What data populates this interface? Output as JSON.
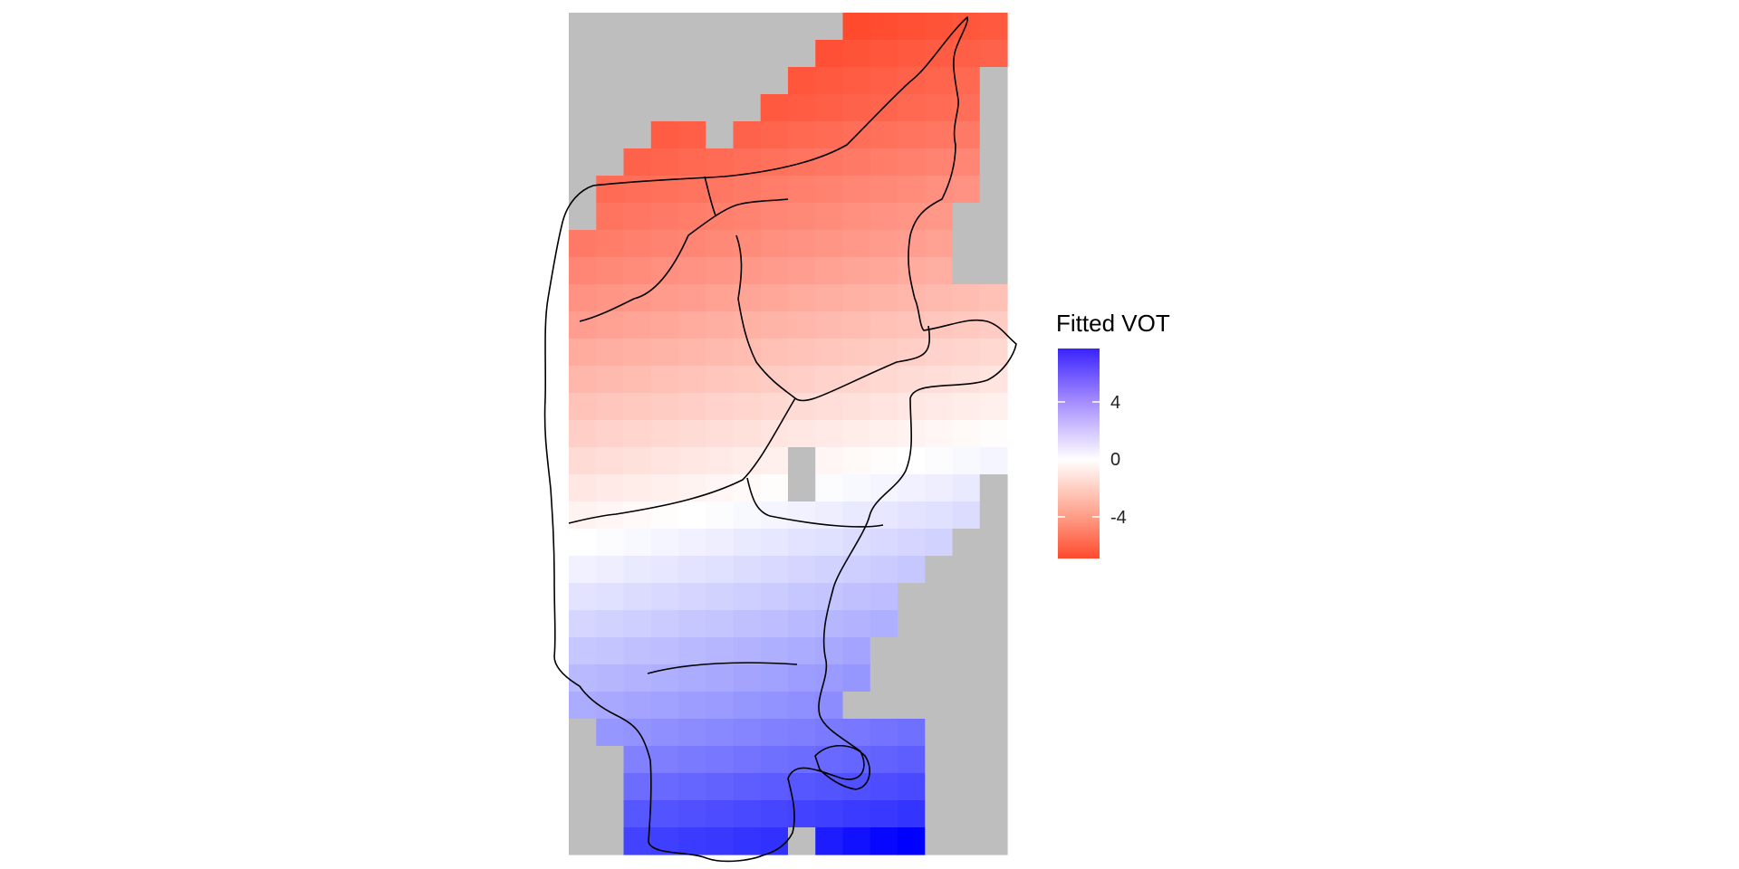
{
  "chart_data": {
    "type": "heatmap",
    "title": "",
    "xlabel": "",
    "ylabel": "",
    "axes_visible": false,
    "grid": false,
    "legend": {
      "title": "Fitted VOT",
      "position": "right",
      "ticks": [
        4,
        0,
        -4
      ],
      "tick_labels": [
        "4",
        "0",
        "-4"
      ],
      "range": [
        -6,
        7.3
      ]
    },
    "colors": {
      "low": "#ff4a2e",
      "mid": "#ffffff",
      "high": "#0000ff",
      "na": "#bebebe",
      "background": "#ffffff",
      "outline": "#000000"
    },
    "grid_size": {
      "cols": 16,
      "rows": 31
    },
    "values_by_row_top_to_bottom": [
      [
        null,
        null,
        null,
        null,
        null,
        null,
        null,
        null,
        null,
        null,
        -6.0,
        -5.9,
        -5.8,
        -5.7,
        -5.6,
        -5.5
      ],
      [
        null,
        null,
        null,
        null,
        null,
        null,
        null,
        null,
        null,
        -5.8,
        -5.7,
        -5.6,
        -5.5,
        -5.4,
        -5.3,
        -5.2
      ],
      [
        null,
        null,
        null,
        null,
        null,
        null,
        null,
        null,
        -5.6,
        -5.5,
        -5.4,
        -5.3,
        -5.2,
        -5.1,
        -5.0,
        null
      ],
      [
        null,
        null,
        null,
        null,
        null,
        null,
        null,
        -5.5,
        -5.4,
        -5.3,
        -5.2,
        -5.1,
        -5.0,
        -4.9,
        -4.8,
        null
      ],
      [
        null,
        null,
        null,
        -5.4,
        -5.3,
        null,
        -5.2,
        -5.1,
        -5.0,
        -4.9,
        -4.8,
        -4.7,
        -4.6,
        -4.5,
        -4.4,
        null
      ],
      [
        null,
        null,
        -5.2,
        -5.1,
        -5.0,
        -4.9,
        -4.8,
        -4.7,
        -4.6,
        -4.5,
        -4.4,
        -4.3,
        -4.2,
        -4.1,
        -4.0,
        null
      ],
      [
        null,
        -4.9,
        -4.8,
        -4.7,
        -4.6,
        -4.5,
        -4.4,
        -4.3,
        -4.2,
        -4.1,
        -4.0,
        -3.9,
        -3.8,
        -3.7,
        -3.6,
        null
      ],
      [
        null,
        -4.6,
        -4.5,
        -4.4,
        -4.3,
        -4.2,
        -4.1,
        -4.0,
        -3.9,
        -3.8,
        -3.7,
        -3.6,
        -3.5,
        -3.4,
        null,
        null
      ],
      [
        -4.4,
        -4.3,
        -4.2,
        -4.1,
        -4.0,
        -3.9,
        -3.8,
        -3.7,
        -3.6,
        -3.5,
        -3.4,
        -3.3,
        -3.2,
        -3.1,
        null,
        null
      ],
      [
        -4.0,
        -3.9,
        -3.8,
        -3.7,
        -3.6,
        -3.5,
        -3.4,
        -3.3,
        -3.2,
        -3.1,
        -3.0,
        -2.9,
        -2.8,
        -2.7,
        null,
        null
      ],
      [
        -3.6,
        -3.5,
        -3.4,
        -3.3,
        -3.2,
        -3.1,
        -3.0,
        -2.9,
        -2.8,
        -2.7,
        -2.6,
        -2.5,
        -2.4,
        -2.3,
        -2.2,
        -2.1
      ],
      [
        -3.2,
        -3.1,
        -3.0,
        -2.9,
        -2.8,
        -2.7,
        -2.6,
        -2.5,
        -2.4,
        -2.3,
        -2.2,
        -2.1,
        -2.0,
        -1.9,
        -1.8,
        -1.7
      ],
      [
        -2.8,
        -2.7,
        -2.6,
        -2.5,
        -2.4,
        -2.3,
        -2.2,
        -2.1,
        -2.0,
        -1.9,
        -1.8,
        -1.7,
        -1.6,
        -1.5,
        -1.4,
        -1.3
      ],
      [
        -2.4,
        -2.3,
        -2.2,
        -2.1,
        -2.0,
        -1.9,
        -1.8,
        -1.7,
        -1.6,
        -1.5,
        -1.4,
        -1.3,
        -1.2,
        -1.1,
        -1.0,
        -0.9
      ],
      [
        -2.0,
        -1.9,
        -1.8,
        -1.7,
        -1.6,
        -1.5,
        -1.4,
        -1.3,
        -1.2,
        -1.1,
        -1.0,
        -0.9,
        -0.8,
        -0.7,
        -0.6,
        -0.5
      ],
      [
        -1.6,
        -1.5,
        -1.4,
        -1.3,
        -1.2,
        -1.1,
        -1.0,
        -0.9,
        -0.8,
        -0.7,
        -0.6,
        -0.5,
        -0.4,
        -0.3,
        -0.2,
        -0.1
      ],
      [
        -1.2,
        -1.1,
        -1.0,
        -0.9,
        -0.8,
        -0.7,
        -0.6,
        -0.5,
        null,
        -0.3,
        -0.2,
        -0.1,
        0.0,
        0.1,
        0.2,
        0.3
      ],
      [
        -0.8,
        -0.7,
        -0.6,
        -0.5,
        -0.4,
        -0.3,
        -0.2,
        -0.1,
        null,
        0.1,
        0.2,
        0.3,
        0.4,
        0.5,
        0.6,
        null
      ],
      [
        -0.4,
        -0.3,
        -0.2,
        -0.1,
        0.0,
        0.1,
        0.2,
        0.3,
        0.4,
        0.5,
        0.6,
        0.7,
        0.8,
        0.9,
        1.0,
        null
      ],
      [
        0.0,
        0.1,
        0.2,
        0.3,
        0.4,
        0.5,
        0.6,
        0.7,
        0.8,
        0.9,
        1.0,
        1.1,
        1.2,
        1.3,
        null,
        null
      ],
      [
        0.4,
        0.5,
        0.6,
        0.7,
        0.8,
        0.9,
        1.0,
        1.1,
        1.2,
        1.3,
        1.4,
        1.5,
        1.6,
        null,
        null,
        null
      ],
      [
        0.8,
        0.9,
        1.0,
        1.1,
        1.2,
        1.3,
        1.4,
        1.5,
        1.6,
        1.7,
        1.8,
        1.9,
        null,
        null,
        null,
        null
      ],
      [
        1.2,
        1.3,
        1.4,
        1.5,
        1.6,
        1.7,
        1.8,
        1.9,
        2.0,
        2.1,
        2.2,
        2.3,
        null,
        null,
        null,
        null
      ],
      [
        1.6,
        1.7,
        1.8,
        1.9,
        2.0,
        2.1,
        2.2,
        2.3,
        2.4,
        2.5,
        2.6,
        null,
        null,
        null,
        null,
        null
      ],
      [
        2.0,
        2.1,
        2.2,
        2.3,
        2.4,
        2.5,
        2.6,
        2.7,
        2.8,
        2.9,
        3.0,
        null,
        null,
        null,
        null,
        null
      ],
      [
        2.4,
        2.5,
        2.6,
        2.7,
        2.8,
        2.9,
        3.0,
        3.1,
        3.2,
        3.3,
        null,
        null,
        null,
        null,
        null,
        null
      ],
      [
        null,
        3.0,
        3.1,
        3.2,
        3.3,
        3.4,
        3.5,
        3.6,
        3.7,
        3.8,
        3.9,
        4.0,
        4.1,
        null,
        null,
        null
      ],
      [
        null,
        null,
        3.6,
        3.7,
        3.8,
        3.9,
        4.0,
        4.1,
        4.2,
        4.3,
        4.4,
        4.5,
        4.6,
        null,
        null,
        null
      ],
      [
        null,
        null,
        4.2,
        4.3,
        4.4,
        4.5,
        4.6,
        4.7,
        4.8,
        4.9,
        5.0,
        5.1,
        5.2,
        null,
        null,
        null
      ],
      [
        null,
        null,
        4.8,
        4.9,
        5.0,
        5.1,
        5.2,
        5.3,
        5.4,
        5.5,
        5.6,
        5.7,
        5.8,
        null,
        null,
        null
      ],
      [
        null,
        null,
        5.4,
        5.5,
        5.6,
        5.7,
        5.8,
        5.9,
        null,
        6.5,
        6.8,
        7.1,
        7.3,
        null,
        null,
        null
      ]
    ]
  }
}
